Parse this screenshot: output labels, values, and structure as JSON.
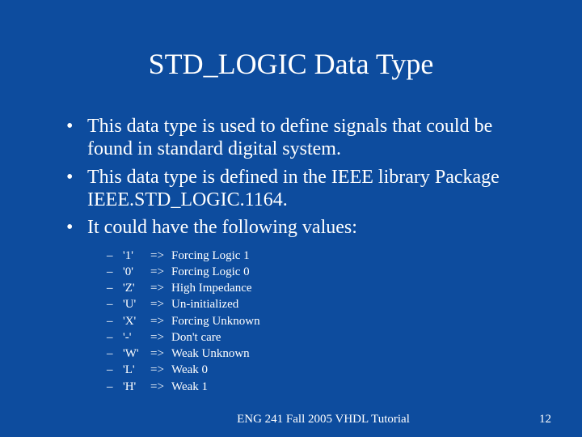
{
  "background_color": "#0d4c9e",
  "text_color": "#ffffff",
  "font_family": "Times New Roman",
  "title": {
    "text": "STD_LOGIC Data Type",
    "fontsize": 36
  },
  "bullets": [
    {
      "marker": "•",
      "text": "This data type is used to define signals that could be found in standard digital system."
    },
    {
      "marker": "•",
      "text": "This data type is defined in the IEEE library Package IEEE.STD_LOGIC.1164."
    },
    {
      "marker": "•",
      "text": "It could have the following values:"
    }
  ],
  "values_list": {
    "marker": "–",
    "arrow": "=>",
    "items": [
      {
        "code": "'1'",
        "desc": "Forcing Logic 1"
      },
      {
        "code": "'0'",
        "desc": "Forcing Logic 0"
      },
      {
        "code": "'Z'",
        "desc": "High Impedance"
      },
      {
        "code": "'U'",
        "desc": "Un-initialized"
      },
      {
        "code": "'X'",
        "desc": "Forcing Unknown"
      },
      {
        "code": "'-'",
        "desc": "Don't care"
      },
      {
        "code": "'W'",
        "desc": "Weak Unknown"
      },
      {
        "code": "'L'",
        "desc": "Weak 0"
      },
      {
        "code": "'H'",
        "desc": "Weak 1"
      }
    ]
  },
  "footer": {
    "center": "ENG 241 Fall 2005 VHDL Tutorial",
    "page": "12"
  }
}
